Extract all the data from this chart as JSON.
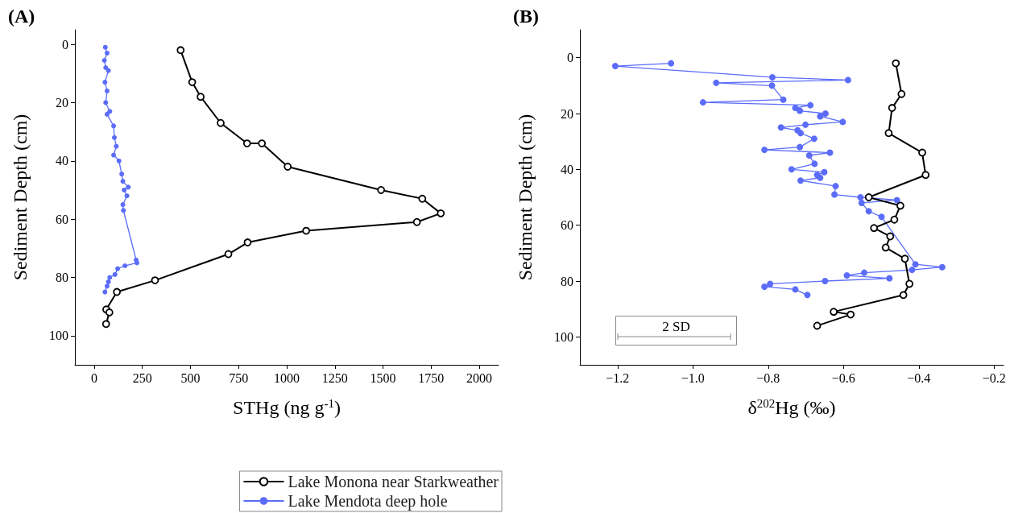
{
  "chart_data": [
    {
      "type": "line",
      "annotations": [
        "(A)"
      ],
      "xlabel": "STHg (ng g$^{-1}$)",
      "ylabel": "Sediment Depth (cm)",
      "xlim": [
        -100,
        2100
      ],
      "xticks": [
        0,
        250,
        500,
        750,
        1000,
        1250,
        1500,
        1750,
        2000
      ],
      "ylim": [
        110,
        -5
      ],
      "yticks": [
        0,
        20,
        40,
        60,
        80,
        100
      ],
      "grid": false,
      "legend": "bottom",
      "marker": "circle",
      "series": [
        {
          "name": "Lake Monona near Starkweather",
          "color": "#000000",
          "x": [
            449,
            509,
            553,
            657,
            794,
            871,
            1005,
            1490,
            1704,
            1800,
            1676,
            1101,
            797,
            697,
            316,
            118,
            63,
            79,
            62
          ],
          "values": [
            2,
            13,
            18,
            27,
            34,
            34,
            42,
            50,
            53,
            58,
            61,
            64,
            68,
            72,
            81,
            85,
            91,
            92,
            96
          ]
        },
        {
          "name": "Lake Mendota deep hole",
          "color": "#5b6cf9",
          "x": [
            58,
            67,
            53,
            60,
            74,
            56,
            67,
            60,
            81,
            67,
            101,
            105,
            115,
            101,
            129,
            143,
            149,
            177,
            156,
            170,
            149,
            152,
            218,
            222,
            160,
            122,
            108,
            81,
            74,
            67,
            56
          ],
          "values": [
            1,
            3,
            5.5,
            8,
            9,
            13,
            16,
            20,
            23,
            24,
            28,
            32,
            35,
            38,
            40,
            44.5,
            47,
            49,
            50,
            52,
            55,
            57,
            74,
            75,
            76,
            77,
            79,
            80,
            81.5,
            83,
            85
          ]
        }
      ]
    },
    {
      "type": "line",
      "annotations": [
        "(B)",
        "2 SD"
      ],
      "xlabel": "δ$^{202}$Hg (‰)",
      "ylabel": "Sediment Depth (cm)",
      "xlim": [
        -1.3,
        -0.175
      ],
      "xticks": [
        {
          "value": -1.2,
          "label": "−1.2"
        },
        {
          "value": -1.0,
          "label": "−1.0"
        },
        {
          "value": -0.8,
          "label": "−0.8"
        },
        {
          "value": -0.6,
          "label": "−0.6"
        },
        {
          "value": -0.4,
          "label": "−0.4"
        },
        {
          "value": -0.2,
          "label": "−0.2"
        }
      ],
      "ylim": [
        110,
        -10
      ],
      "yticks": [
        0,
        20,
        40,
        60,
        80,
        100
      ],
      "grid": false,
      "marker": "circle",
      "series": [
        {
          "color": "#000000",
          "x": [
            -0.461,
            -0.446,
            -0.471,
            -0.48,
            -0.391,
            -0.382,
            -0.533,
            -0.449,
            -0.465,
            -0.519,
            -0.476,
            -0.488,
            -0.437,
            -0.425,
            -0.441,
            -0.626,
            -0.581,
            -0.67
          ],
          "values": [
            2,
            13,
            18,
            27,
            34,
            42,
            50,
            53,
            58,
            61,
            64,
            68,
            72,
            81,
            85,
            91,
            92,
            96
          ]
        },
        {
          "color": "#5b6cf9",
          "x": [
            -1.058,
            -1.206,
            -0.789,
            -0.588,
            -0.938,
            -0.79,
            -0.76,
            -0.973,
            -0.688,
            -0.728,
            -0.716,
            -0.648,
            -0.662,
            -0.602,
            -0.701,
            -0.766,
            -0.722,
            -0.714,
            -0.678,
            -0.716,
            -0.81,
            -0.636,
            -0.691,
            -0.677,
            -0.738,
            -0.651,
            -0.67,
            -0.662,
            -0.714,
            -0.621,
            -0.624,
            -0.555,
            -0.458,
            -0.552,
            -0.533,
            -0.499,
            -0.409,
            -0.338,
            -0.418,
            -0.545,
            -0.591,
            -0.478,
            -0.649,
            -0.795,
            -0.81,
            -0.728,
            -0.696
          ],
          "values": [
            2,
            3,
            7,
            8,
            9,
            10,
            15,
            16,
            17,
            18,
            19,
            20,
            21,
            23,
            24,
            25,
            26,
            27,
            29,
            32,
            33,
            34,
            35,
            38,
            40,
            41,
            42,
            43,
            44,
            46,
            49,
            50,
            51,
            52,
            55,
            57,
            74,
            75,
            76,
            77,
            78,
            79,
            80,
            81,
            82,
            83,
            85
          ]
        }
      ]
    }
  ]
}
